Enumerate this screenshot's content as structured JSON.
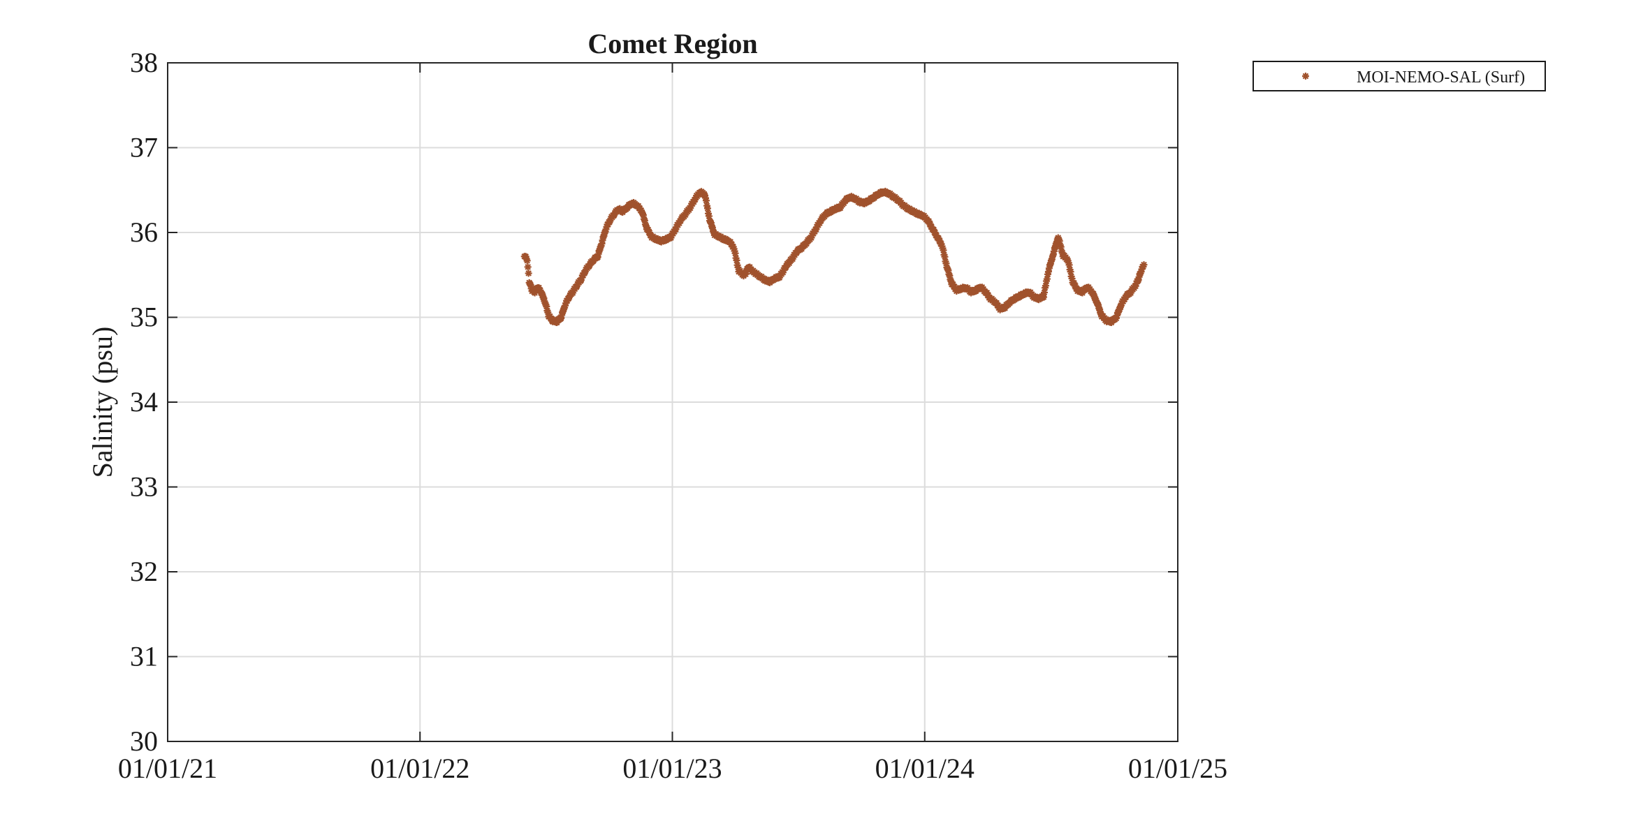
{
  "chart_data": {
    "type": "scatter",
    "title": "Comet Region",
    "xlabel": "",
    "ylabel": "Salinity (psu)",
    "x_axis_kind": "date",
    "xlim": [
      "2021-01-01",
      "2025-01-01"
    ],
    "ylim": [
      30,
      38
    ],
    "x_ticks": [
      "2021-01-01",
      "2022-01-01",
      "2023-01-01",
      "2024-01-01",
      "2025-01-01"
    ],
    "x_tick_labels": [
      "01/01/21",
      "01/01/22",
      "01/01/23",
      "01/01/24",
      "01/01/25"
    ],
    "y_ticks": [
      30,
      31,
      32,
      33,
      34,
      35,
      36,
      37,
      38
    ],
    "y_tick_labels": [
      "30",
      "31",
      "32",
      "33",
      "34",
      "35",
      "36",
      "37",
      "38"
    ],
    "grid": true,
    "legend_position": "outside-top-right",
    "series": [
      {
        "name": "MOI-NEMO-SAL (Surf)",
        "marker": "asterisk",
        "color": "#A0522D",
        "x": [
          "2022-06-01",
          "2022-06-05",
          "2022-06-08",
          "2022-06-12",
          "2022-06-16",
          "2022-06-20",
          "2022-06-25",
          "2022-07-01",
          "2022-07-06",
          "2022-07-12",
          "2022-07-18",
          "2022-07-24",
          "2022-07-30",
          "2022-08-05",
          "2022-08-10",
          "2022-08-16",
          "2022-08-22",
          "2022-08-28",
          "2022-09-03",
          "2022-09-09",
          "2022-09-15",
          "2022-09-21",
          "2022-09-27",
          "2022-10-03",
          "2022-10-09",
          "2022-10-15",
          "2022-10-21",
          "2022-10-28",
          "2022-11-04",
          "2022-11-11",
          "2022-11-18",
          "2022-11-25",
          "2022-12-02",
          "2022-12-09",
          "2022-12-16",
          "2022-12-23",
          "2022-12-30",
          "2023-01-06",
          "2023-01-13",
          "2023-01-20",
          "2023-01-27",
          "2023-02-03",
          "2023-02-10",
          "2023-02-17",
          "2023-02-24",
          "2023-03-03",
          "2023-03-10",
          "2023-03-17",
          "2023-03-24",
          "2023-03-31",
          "2023-04-07",
          "2023-04-14",
          "2023-04-17",
          "2023-04-21",
          "2023-04-26",
          "2023-05-01",
          "2023-05-08",
          "2023-05-15",
          "2023-05-22",
          "2023-05-29",
          "2023-06-05",
          "2023-06-10",
          "2023-06-14",
          "2023-06-19",
          "2023-06-24",
          "2023-06-30",
          "2023-07-07",
          "2023-07-14",
          "2023-07-21",
          "2023-07-28",
          "2023-08-04",
          "2023-08-11",
          "2023-08-18",
          "2023-08-25",
          "2023-09-01",
          "2023-09-08",
          "2023-09-15",
          "2023-09-22",
          "2023-09-29",
          "2023-10-06",
          "2023-10-13",
          "2023-10-20",
          "2023-10-27",
          "2023-11-03",
          "2023-11-10",
          "2023-11-17",
          "2023-11-24",
          "2023-12-01",
          "2023-12-08",
          "2023-12-15",
          "2023-12-22",
          "2023-12-29",
          "2024-01-05",
          "2024-01-12",
          "2024-01-19",
          "2024-01-26",
          "2024-02-02",
          "2024-02-09",
          "2024-02-16",
          "2024-02-23",
          "2024-03-01",
          "2024-03-08",
          "2024-03-15",
          "2024-03-22",
          "2024-03-29",
          "2024-04-05",
          "2024-04-12",
          "2024-04-19",
          "2024-04-26",
          "2024-05-03",
          "2024-05-10",
          "2024-05-17",
          "2024-05-24",
          "2024-05-31",
          "2024-06-07",
          "2024-06-14",
          "2024-06-21",
          "2024-06-28",
          "2024-07-05",
          "2024-07-12",
          "2024-07-19",
          "2024-07-26",
          "2024-08-02",
          "2024-08-09",
          "2024-08-16",
          "2024-08-23",
          "2024-08-30",
          "2024-09-06",
          "2024-09-13",
          "2024-09-20",
          "2024-09-27",
          "2024-10-04",
          "2024-10-11",
          "2024-10-18",
          "2024-10-25",
          "2024-11-01",
          "2024-11-05",
          "2024-11-09",
          "2024-11-13"
        ],
        "y": [
          35.73,
          35.68,
          35.42,
          35.32,
          35.3,
          35.36,
          35.3,
          35.18,
          35.02,
          34.96,
          34.95,
          35.0,
          35.15,
          35.25,
          35.3,
          35.38,
          35.45,
          35.55,
          35.62,
          35.68,
          35.72,
          35.88,
          36.05,
          36.15,
          36.22,
          36.28,
          36.25,
          36.3,
          36.35,
          36.32,
          36.25,
          36.05,
          35.95,
          35.92,
          35.9,
          35.92,
          35.95,
          36.05,
          36.15,
          36.22,
          36.3,
          36.4,
          36.48,
          36.45,
          36.15,
          35.98,
          35.95,
          35.92,
          35.9,
          35.82,
          35.55,
          35.5,
          35.52,
          35.6,
          35.55,
          35.52,
          35.48,
          35.44,
          35.42,
          35.46,
          35.48,
          35.54,
          35.6,
          35.65,
          35.7,
          35.78,
          35.82,
          35.88,
          35.95,
          36.05,
          36.15,
          36.22,
          36.25,
          36.28,
          36.3,
          36.38,
          36.42,
          36.4,
          36.36,
          36.35,
          36.38,
          36.42,
          36.46,
          36.48,
          36.46,
          36.42,
          36.38,
          36.32,
          36.28,
          36.25,
          36.22,
          36.2,
          36.15,
          36.05,
          35.95,
          35.85,
          35.6,
          35.4,
          35.32,
          35.34,
          35.35,
          35.3,
          35.32,
          35.36,
          35.3,
          35.22,
          35.18,
          35.1,
          35.12,
          35.18,
          35.22,
          35.25,
          35.28,
          35.3,
          35.24,
          35.22,
          35.25,
          35.55,
          35.75,
          35.95,
          35.73,
          35.68,
          35.42,
          35.32,
          35.3,
          35.36,
          35.3,
          35.18,
          35.02,
          34.96,
          34.95,
          35.0,
          35.15,
          35.25,
          35.3,
          35.38,
          35.45,
          35.55,
          35.62
        ]
      }
    ]
  }
}
